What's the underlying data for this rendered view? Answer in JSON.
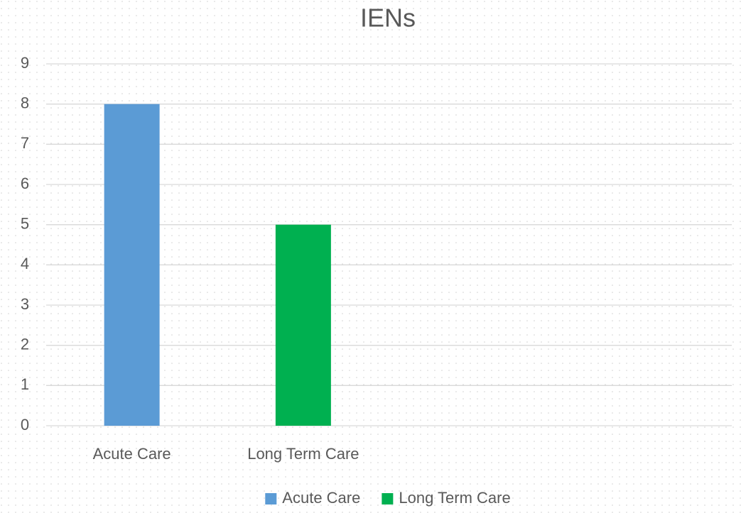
{
  "chart_data": {
    "type": "bar",
    "title": "IENs",
    "categories": [
      "Acute Care",
      "Long Term Care",
      null,
      null
    ],
    "series": [
      {
        "name": "Acute Care",
        "color": "#5b9bd5",
        "values": [
          8,
          null,
          null,
          null
        ]
      },
      {
        "name": "Long Term Care",
        "color": "#00b050",
        "values": [
          null,
          5,
          null,
          null
        ]
      }
    ],
    "ylim": [
      0,
      9
    ],
    "yticks": [
      0,
      1,
      2,
      3,
      4,
      5,
      6,
      7,
      8,
      9
    ],
    "grid": true,
    "legend": "bottom"
  }
}
